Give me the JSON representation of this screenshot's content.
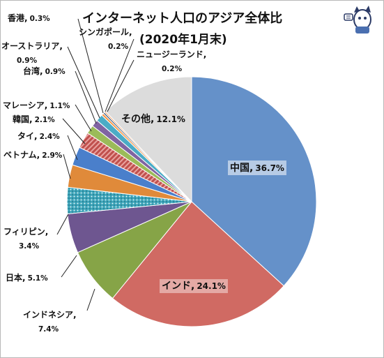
{
  "title": "インターネット人口のアジア全体比",
  "subtitle": "(2020年1月末)",
  "chart_data": {
    "type": "pie",
    "title": "インターネット人口のアジア全体比",
    "subtitle": "(2020年1月末)",
    "slices": [
      {
        "name": "中国",
        "value": 36.7,
        "color": "#6591c9",
        "pattern": "none",
        "label_line1": "中国,",
        "label_line2": "36.7%"
      },
      {
        "name": "インド",
        "value": 24.1,
        "color": "#d06a63",
        "pattern": "none",
        "label_line1": "インド,",
        "label_line2": "24.1%"
      },
      {
        "name": "インドネシア",
        "value": 7.4,
        "color": "#86a447",
        "pattern": "none",
        "label_line1": "インドネシア,",
        "label_line2": "7.4%"
      },
      {
        "name": "日本",
        "value": 5.1,
        "color": "#6e5690",
        "pattern": "none",
        "label_line1": "日本,",
        "label_line2": "5.1%"
      },
      {
        "name": "フィリピン",
        "value": 3.4,
        "color": "#3fa6bb",
        "pattern": "dots",
        "label_line1": "フィリピン,",
        "label_line2": "3.4%"
      },
      {
        "name": "ベトナム",
        "value": 2.9,
        "color": "#e08a3a",
        "pattern": "none",
        "label_line1": "ベトナム,",
        "label_line2": "2.9%"
      },
      {
        "name": "タイ",
        "value": 2.4,
        "color": "#4a7fcb",
        "pattern": "none",
        "label_line1": "タイ,",
        "label_line2": "2.4%"
      },
      {
        "name": "韓国",
        "value": 2.1,
        "color": "#c0504d",
        "pattern": "diag",
        "label_line1": "韓国,",
        "label_line2": "2.1%"
      },
      {
        "name": "マレーシア",
        "value": 1.1,
        "color": "#9bbb59",
        "pattern": "none",
        "label_line1": "マレーシア,",
        "label_line2": "1.1%"
      },
      {
        "name": "台湾",
        "value": 0.9,
        "color": "#8064a2",
        "pattern": "none",
        "label_line1": "台湾,",
        "label_line2": "0.9%"
      },
      {
        "name": "オーストラリア",
        "value": 0.9,
        "color": "#4bacc6",
        "pattern": "none",
        "label_line1": "オーストラリア,",
        "label_line2": "0.9%"
      },
      {
        "name": "香港",
        "value": 0.3,
        "color": "#f79646",
        "pattern": "none",
        "label_line1": "香港,",
        "label_line2": "0.3%"
      },
      {
        "name": "シンガポール",
        "value": 0.2,
        "color": "#2c4d75",
        "pattern": "none",
        "label_line1": "シンガポール,",
        "label_line2": "0.2%"
      },
      {
        "name": "ニュージーランド",
        "value": 0.2,
        "color": "#f4b183",
        "pattern": "none",
        "label_line1": "ニュージーランド,",
        "label_line2": "0.2%"
      },
      {
        "name": "その他",
        "value": 12.1,
        "color": "#dcdcdc",
        "pattern": "none",
        "label_line1": "その他,",
        "label_line2": "12.1%"
      }
    ]
  }
}
